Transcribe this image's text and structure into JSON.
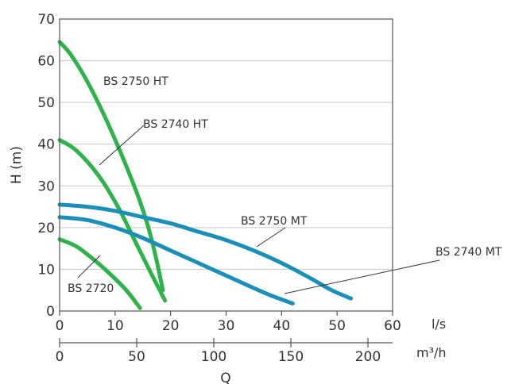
{
  "chart_data": {
    "type": "line",
    "ylabel": "H (m)",
    "xlabel": "Q",
    "x_unit_primary": "l/s",
    "x_unit_secondary": "m³/h",
    "xlim": [
      0,
      60
    ],
    "ylim": [
      0,
      70
    ],
    "x_ticks": [
      0,
      10,
      20,
      30,
      40,
      50,
      60
    ],
    "y_ticks": [
      0,
      10,
      20,
      30,
      40,
      50,
      60,
      70
    ],
    "x2_ticks": [
      0,
      50,
      100,
      150,
      200
    ],
    "x2_tick_labels": [
      "0",
      "50",
      "100",
      "150",
      "200"
    ],
    "grid": "horizontal",
    "series": [
      {
        "name": "BS 2750 HT",
        "color": "#2db34a",
        "points": [
          [
            0,
            64.5
          ],
          [
            2,
            61.5
          ],
          [
            5,
            55
          ],
          [
            8,
            47
          ],
          [
            11,
            38
          ],
          [
            14,
            28
          ],
          [
            16,
            20
          ],
          [
            17.5,
            12
          ],
          [
            18.6,
            5
          ]
        ]
      },
      {
        "name": "BS 2740 HT",
        "color": "#2db34a",
        "points": [
          [
            0,
            41
          ],
          [
            3,
            38.5
          ],
          [
            7,
            32.5
          ],
          [
            10.5,
            25
          ],
          [
            13.5,
            17
          ],
          [
            16.5,
            9
          ],
          [
            19,
            2.5
          ]
        ]
      },
      {
        "name": "BS 2720",
        "color": "#2db34a",
        "points": [
          [
            0,
            17.2
          ],
          [
            3,
            15.5
          ],
          [
            6,
            12.5
          ],
          [
            9,
            9
          ],
          [
            12,
            5
          ],
          [
            14.5,
            0.7
          ]
        ]
      },
      {
        "name": "BS 2750 MT",
        "color": "#1a8fb8",
        "points": [
          [
            0,
            25.5
          ],
          [
            5,
            25
          ],
          [
            10,
            24
          ],
          [
            15,
            22.5
          ],
          [
            20,
            21
          ],
          [
            25,
            19
          ],
          [
            30,
            17
          ],
          [
            35,
            14.5
          ],
          [
            40,
            11.5
          ],
          [
            45,
            8
          ],
          [
            49,
            5
          ],
          [
            52.5,
            3
          ]
        ]
      },
      {
        "name": "BS 2740 MT",
        "color": "#1a8fb8",
        "points": [
          [
            0,
            22.5
          ],
          [
            5,
            21.8
          ],
          [
            10,
            20
          ],
          [
            15,
            17.5
          ],
          [
            20,
            14.5
          ],
          [
            25,
            11.5
          ],
          [
            30,
            8.5
          ],
          [
            35,
            5.5
          ],
          [
            38.5,
            3.5
          ],
          [
            42,
            1.8
          ]
        ]
      }
    ],
    "annotations": [
      {
        "text": "BS 2750 HT",
        "series": "BS 2750 HT"
      },
      {
        "text": "BS 2740 HT",
        "series": "BS 2740 HT"
      },
      {
        "text": "BS 2720",
        "series": "BS 2720"
      },
      {
        "text": "BS 2750 MT",
        "series": "BS 2750 MT"
      },
      {
        "text": "BS 2740 MT",
        "series": "BS 2740 MT"
      }
    ]
  }
}
